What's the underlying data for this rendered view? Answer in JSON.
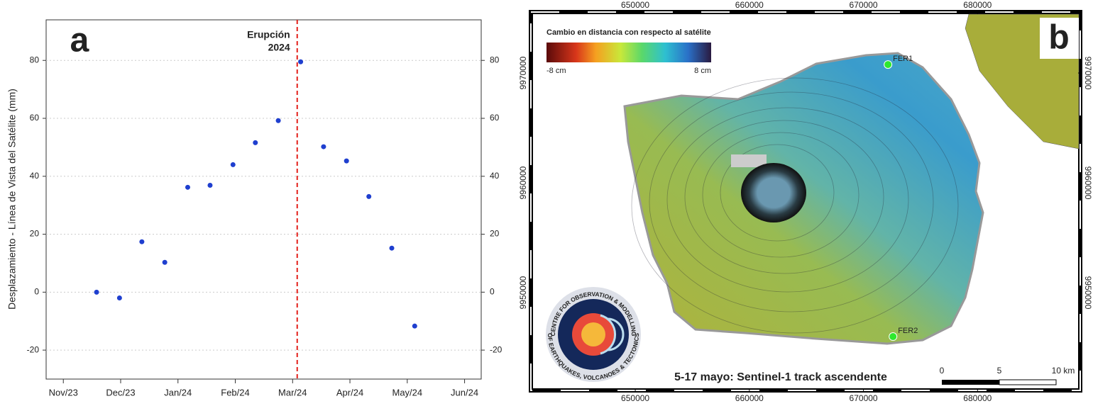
{
  "chart_data": {
    "type": "scatter",
    "panel_label": "a",
    "ylabel": "Desplazamiento - Línea de Vista del Satélite (mm)",
    "x": [
      0.58,
      0.98,
      1.37,
      1.77,
      2.17,
      2.56,
      2.96,
      3.35,
      3.75,
      4.14,
      4.54,
      4.94,
      5.33,
      5.73,
      6.13
    ],
    "values": [
      0.0,
      -2.0,
      17.4,
      10.3,
      36.2,
      36.9,
      44.0,
      51.6,
      59.2,
      79.5,
      50.2,
      45.3,
      33.0,
      15.2,
      -11.7
    ],
    "color": "#1f3fcf",
    "xlim": [
      -0.3,
      7.29
    ],
    "xticks": [
      {
        "value": 0,
        "label": "Nov/23"
      },
      {
        "value": 1,
        "label": "Dec/23"
      },
      {
        "value": 2,
        "label": "Jan/24"
      },
      {
        "value": 3,
        "label": "Feb/24"
      },
      {
        "value": 4,
        "label": "Mar/24"
      },
      {
        "value": 5,
        "label": "Apr/24"
      },
      {
        "value": 6,
        "label": "May/24"
      },
      {
        "value": 7,
        "label": "Jun/24"
      }
    ],
    "ylim": [
      -30,
      94
    ],
    "yticks": [
      -20,
      0,
      20,
      40,
      60,
      80
    ],
    "grid": true,
    "vline": {
      "x": 4.08,
      "label": [
        "Erupción",
        "2024"
      ],
      "color": "#e3201b"
    }
  },
  "map": {
    "panel_label": "b",
    "caption": "5-17 mayo: Sentinel-1 track ascendente",
    "xlim": [
      640850,
      689000
    ],
    "ylim": [
      9941100,
      9975550
    ],
    "xticks": [
      650000,
      660000,
      670000,
      680000
    ],
    "yticks": [
      9950000,
      9960000,
      9970000
    ],
    "colorbar": {
      "title": "Cambio en distancia con respecto al satélite",
      "labels": [
        "-8 cm",
        "8 cm"
      ]
    },
    "stations": [
      {
        "label": "FER1",
        "x": 672150,
        "y": 9970770,
        "color": "#2ee82e"
      },
      {
        "label": "FER2",
        "x": 672590,
        "y": 9946000,
        "color": "#2ee82e"
      }
    ],
    "scalebar": {
      "labels": [
        "0",
        "5",
        "10 km"
      ]
    },
    "logo_text": [
      "CENTRE FOR OBSERVATION & MODELLING",
      "OF EARTHQUAKES, VOLCANOES & TECTONICS"
    ]
  }
}
